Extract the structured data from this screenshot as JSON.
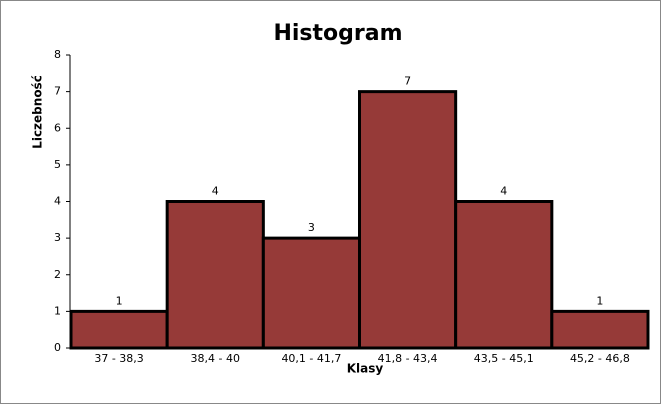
{
  "chart_data": {
    "type": "bar",
    "title": "Histogram",
    "xlabel": "Klasy",
    "ylabel": "Liczebność",
    "categories": [
      "37 - 38,3",
      "38,4 - 40",
      "40,1 - 41,7",
      "41,8 - 43,4",
      "43,5 - 45,1",
      "45,2 - 46,8"
    ],
    "values": [
      1,
      4,
      3,
      7,
      4,
      1
    ],
    "color": "#963a38",
    "ylim": [
      0,
      8
    ],
    "yticks": [
      0,
      1,
      2,
      3,
      4,
      5,
      6,
      7,
      8
    ],
    "grid": false
  }
}
